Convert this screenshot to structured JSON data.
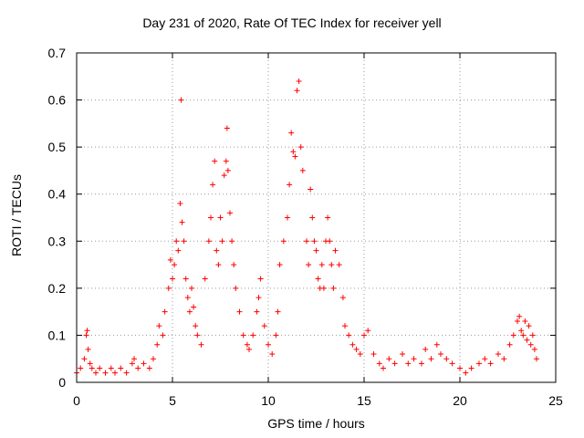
{
  "chart_data": {
    "type": "scatter",
    "title": "Day 231 of 2020, Rate Of TEC Index for receiver yell",
    "xlabel": "GPS time / hours",
    "ylabel": "ROTI / TECUs",
    "xlim": [
      0,
      25
    ],
    "ylim": [
      0,
      0.7
    ],
    "x_ticks": [
      "0",
      "5",
      "10",
      "15",
      "20",
      "25"
    ],
    "y_ticks": [
      "0",
      "0.1",
      "0.2",
      "0.3",
      "0.4",
      "0.5",
      "0.6",
      "0.7"
    ],
    "grid": true,
    "marker": "+",
    "marker_color": "#ff0000",
    "series": [
      {
        "x": [
          0.0,
          0.2,
          0.4,
          0.5,
          0.55,
          0.6,
          0.7,
          0.8,
          1.0,
          1.2,
          1.5,
          1.8,
          2.0,
          2.3,
          2.6,
          2.9,
          3.0,
          3.2,
          3.5,
          3.8,
          4.0,
          4.2,
          4.3,
          4.5,
          4.6,
          4.8,
          4.9,
          5.0,
          5.1,
          5.2,
          5.3,
          5.4,
          5.45,
          5.5,
          5.6,
          5.7,
          5.8,
          5.9,
          6.0,
          6.1,
          6.2,
          6.3,
          6.5,
          6.7,
          6.9,
          7.0,
          7.1,
          7.2,
          7.3,
          7.4,
          7.5,
          7.6,
          7.7,
          7.8,
          7.85,
          7.9,
          8.0,
          8.1,
          8.2,
          8.3,
          8.5,
          8.7,
          8.9,
          9.0,
          9.2,
          9.4,
          9.5,
          9.6,
          9.8,
          10.0,
          10.2,
          10.4,
          10.5,
          10.6,
          10.8,
          11.0,
          11.1,
          11.2,
          11.3,
          11.4,
          11.5,
          11.6,
          11.7,
          11.8,
          12.0,
          12.1,
          12.2,
          12.3,
          12.4,
          12.5,
          12.6,
          12.7,
          12.8,
          12.9,
          13.0,
          13.1,
          13.2,
          13.3,
          13.4,
          13.5,
          13.7,
          13.9,
          14.0,
          14.2,
          14.4,
          14.6,
          14.8,
          15.0,
          15.2,
          15.5,
          15.8,
          16.0,
          16.3,
          16.6,
          17.0,
          17.3,
          17.6,
          18.0,
          18.2,
          18.5,
          18.8,
          19.0,
          19.3,
          19.6,
          20.0,
          20.3,
          20.6,
          21.0,
          21.3,
          21.6,
          22.0,
          22.3,
          22.6,
          22.8,
          23.0,
          23.1,
          23.2,
          23.3,
          23.4,
          23.5,
          23.6,
          23.7,
          23.8,
          23.9,
          24.0
        ],
        "y": [
          0.02,
          0.03,
          0.05,
          0.1,
          0.11,
          0.07,
          0.04,
          0.03,
          0.02,
          0.03,
          0.02,
          0.03,
          0.02,
          0.03,
          0.02,
          0.04,
          0.05,
          0.03,
          0.04,
          0.03,
          0.05,
          0.08,
          0.12,
          0.1,
          0.15,
          0.2,
          0.26,
          0.22,
          0.25,
          0.3,
          0.28,
          0.38,
          0.6,
          0.34,
          0.3,
          0.22,
          0.18,
          0.15,
          0.2,
          0.16,
          0.12,
          0.1,
          0.08,
          0.22,
          0.3,
          0.35,
          0.42,
          0.47,
          0.28,
          0.25,
          0.35,
          0.3,
          0.44,
          0.47,
          0.54,
          0.45,
          0.36,
          0.3,
          0.25,
          0.2,
          0.15,
          0.1,
          0.08,
          0.07,
          0.1,
          0.15,
          0.18,
          0.22,
          0.12,
          0.08,
          0.06,
          0.1,
          0.15,
          0.25,
          0.3,
          0.35,
          0.42,
          0.53,
          0.49,
          0.48,
          0.62,
          0.64,
          0.5,
          0.45,
          0.3,
          0.25,
          0.41,
          0.35,
          0.3,
          0.28,
          0.22,
          0.2,
          0.25,
          0.2,
          0.3,
          0.35,
          0.3,
          0.25,
          0.2,
          0.28,
          0.25,
          0.18,
          0.12,
          0.1,
          0.08,
          0.07,
          0.06,
          0.1,
          0.11,
          0.06,
          0.04,
          0.03,
          0.05,
          0.04,
          0.06,
          0.04,
          0.05,
          0.04,
          0.07,
          0.05,
          0.08,
          0.06,
          0.05,
          0.04,
          0.03,
          0.02,
          0.03,
          0.04,
          0.05,
          0.04,
          0.06,
          0.05,
          0.08,
          0.1,
          0.13,
          0.14,
          0.11,
          0.1,
          0.13,
          0.09,
          0.12,
          0.08,
          0.1,
          0.07,
          0.05
        ]
      }
    ]
  }
}
